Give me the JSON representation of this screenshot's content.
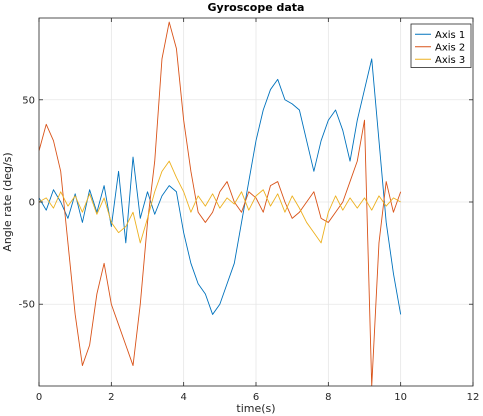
{
  "chart_data": {
    "type": "line",
    "title": "Gyroscope data",
    "xlabel": "time(s)",
    "ylabel": "Angle rate (deg/s)",
    "xlim": [
      0,
      12
    ],
    "ylim": [
      -90,
      90
    ],
    "xticks": [
      0,
      2,
      4,
      6,
      8,
      10,
      12
    ],
    "yticks": [
      -50,
      0,
      50
    ],
    "grid": true,
    "legend_position": "top-right",
    "series": [
      {
        "name": "Axis 1",
        "color": "#0072BD",
        "x": [
          0,
          0.2,
          0.4,
          0.6,
          0.8,
          1.0,
          1.2,
          1.4,
          1.6,
          1.8,
          2.0,
          2.2,
          2.4,
          2.6,
          2.8,
          3.0,
          3.2,
          3.4,
          3.6,
          3.8,
          4.0,
          4.2,
          4.4,
          4.6,
          4.8,
          5.0,
          5.2,
          5.4,
          5.6,
          5.8,
          6.0,
          6.2,
          6.4,
          6.6,
          6.8,
          7.0,
          7.2,
          7.4,
          7.6,
          7.8,
          8.0,
          8.2,
          8.4,
          8.6,
          8.8,
          9.0,
          9.2,
          9.4,
          9.6,
          9.8,
          10.0
        ],
        "values": [
          2,
          -4,
          6,
          0,
          -8,
          4,
          -10,
          6,
          -5,
          8,
          -12,
          15,
          -20,
          22,
          -8,
          5,
          -6,
          3,
          8,
          5,
          -15,
          -30,
          -40,
          -45,
          -55,
          -50,
          -40,
          -30,
          -10,
          10,
          30,
          45,
          55,
          60,
          50,
          48,
          45,
          30,
          15,
          30,
          40,
          45,
          35,
          20,
          40,
          55,
          70,
          30,
          -10,
          -35,
          -55
        ]
      },
      {
        "name": "Axis 2",
        "color": "#D95319",
        "x": [
          0,
          0.2,
          0.4,
          0.6,
          0.8,
          1.0,
          1.2,
          1.4,
          1.6,
          1.8,
          2.0,
          2.2,
          2.4,
          2.6,
          2.8,
          3.0,
          3.2,
          3.4,
          3.6,
          3.8,
          4.0,
          4.2,
          4.4,
          4.6,
          4.8,
          5.0,
          5.2,
          5.4,
          5.6,
          5.8,
          6.0,
          6.2,
          6.4,
          6.6,
          6.8,
          7.0,
          7.2,
          7.4,
          7.6,
          7.8,
          8.0,
          8.2,
          8.4,
          8.6,
          8.8,
          9.0,
          9.2,
          9.4,
          9.6,
          9.8,
          10.0
        ],
        "values": [
          25,
          38,
          30,
          15,
          -20,
          -55,
          -80,
          -70,
          -45,
          -30,
          -50,
          -60,
          -70,
          -80,
          -50,
          -10,
          20,
          70,
          88,
          75,
          40,
          15,
          -5,
          -10,
          -5,
          5,
          10,
          0,
          -5,
          5,
          2,
          -5,
          8,
          10,
          0,
          -8,
          -5,
          0,
          5,
          -8,
          -10,
          -5,
          0,
          10,
          20,
          40,
          -90,
          -20,
          10,
          -5,
          5
        ]
      },
      {
        "name": "Axis 3",
        "color": "#EDB120",
        "x": [
          0,
          0.2,
          0.4,
          0.6,
          0.8,
          1.0,
          1.2,
          1.4,
          1.6,
          1.8,
          2.0,
          2.2,
          2.4,
          2.6,
          2.8,
          3.0,
          3.2,
          3.4,
          3.6,
          3.8,
          4.0,
          4.2,
          4.4,
          4.6,
          4.8,
          5.0,
          5.2,
          5.4,
          5.6,
          5.8,
          6.0,
          6.2,
          6.4,
          6.6,
          6.8,
          7.0,
          7.2,
          7.4,
          7.6,
          7.8,
          8.0,
          8.2,
          8.4,
          8.6,
          8.8,
          9.0,
          9.2,
          9.4,
          9.6,
          9.8,
          10.0
        ],
        "values": [
          0,
          2,
          -3,
          5,
          -2,
          3,
          -5,
          4,
          -6,
          2,
          -10,
          -15,
          -12,
          -5,
          -20,
          -8,
          5,
          15,
          20,
          12,
          5,
          -5,
          3,
          -2,
          4,
          -3,
          2,
          -1,
          5,
          -4,
          3,
          6,
          -2,
          4,
          -5,
          3,
          -3,
          -10,
          -15,
          -20,
          -5,
          3,
          -4,
          2,
          -3,
          2,
          -4,
          3,
          -2,
          2,
          0
        ]
      }
    ]
  }
}
